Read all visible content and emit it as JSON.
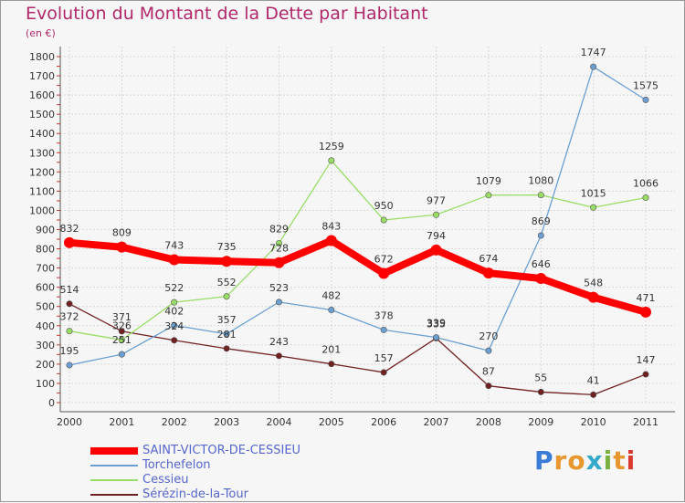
{
  "title": "Evolution du Montant de la Dette par Habitant",
  "unit": "(en €)",
  "logo": {
    "letters": [
      "P",
      "r",
      "o",
      "x",
      "i",
      "t",
      "i"
    ],
    "colors": [
      "#3a7bd5",
      "#e8962e",
      "#e8962e",
      "#35a9c9",
      "#78b13f",
      "#e8962e",
      "#d9382f"
    ]
  },
  "chart_data": {
    "type": "line",
    "title": "Evolution du Montant de la Dette par Habitant",
    "ylabel": "(en €)",
    "xlabel": "",
    "x": [
      "2000",
      "2001",
      "2002",
      "2003",
      "2004",
      "2005",
      "2006",
      "2007",
      "2008",
      "2009",
      "2010",
      "2011"
    ],
    "ylim": [
      0,
      1800
    ],
    "yticks": [
      0,
      100,
      200,
      300,
      400,
      500,
      600,
      700,
      800,
      900,
      1000,
      1100,
      1200,
      1300,
      1400,
      1500,
      1600,
      1700,
      1800
    ],
    "grid": true,
    "legend_position": "bottom-left",
    "series": [
      {
        "name": "SAINT-VICTOR-DE-CESSIEU",
        "color": "#ff0000",
        "values": [
          832,
          809,
          743,
          735,
          728,
          843,
          672,
          794,
          674,
          646,
          548,
          471
        ],
        "width": 8
      },
      {
        "name": "Torchefelon",
        "color": "#6b9fd1",
        "values": [
          195,
          251,
          402,
          357,
          523,
          482,
          378,
          339,
          270,
          869,
          1747,
          1575
        ],
        "width": 1.3
      },
      {
        "name": "Cessieu",
        "color": "#99dd66",
        "values": [
          372,
          326,
          522,
          552,
          829,
          1259,
          950,
          977,
          1079,
          1080,
          1015,
          1066
        ],
        "width": 1.3
      },
      {
        "name": "Sérézin-de-la-Tour",
        "color": "#702020",
        "values": [
          514,
          371,
          324,
          281,
          243,
          201,
          157,
          335,
          87,
          55,
          41,
          147
        ],
        "width": 1.3
      }
    ]
  }
}
